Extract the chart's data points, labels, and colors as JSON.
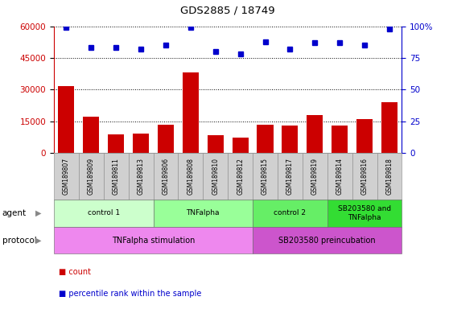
{
  "title": "GDS2885 / 18749",
  "samples": [
    "GSM189807",
    "GSM189809",
    "GSM189811",
    "GSM189813",
    "GSM189806",
    "GSM189808",
    "GSM189810",
    "GSM189812",
    "GSM189815",
    "GSM189817",
    "GSM189819",
    "GSM189814",
    "GSM189816",
    "GSM189818"
  ],
  "counts": [
    31500,
    17000,
    8800,
    9200,
    13500,
    38000,
    8500,
    7200,
    13500,
    13000,
    18000,
    13000,
    16000,
    24000
  ],
  "percentile_ranks": [
    99,
    83,
    83,
    82,
    85,
    99,
    80,
    78,
    88,
    82,
    87,
    87,
    85,
    98
  ],
  "bar_color": "#cc0000",
  "dot_color": "#0000cc",
  "ylim_left": [
    0,
    60000
  ],
  "ylim_right": [
    0,
    100
  ],
  "yticks_left": [
    0,
    15000,
    30000,
    45000,
    60000
  ],
  "ytick_labels_left": [
    "0",
    "15000",
    "30000",
    "45000",
    "60000"
  ],
  "yticks_right": [
    0,
    25,
    50,
    75,
    100
  ],
  "ytick_labels_right": [
    "0",
    "25",
    "50",
    "75",
    "100%"
  ],
  "agent_groups": [
    {
      "label": "control 1",
      "start": 0,
      "end": 4,
      "color": "#ccffcc"
    },
    {
      "label": "TNFalpha",
      "start": 4,
      "end": 8,
      "color": "#99ff99"
    },
    {
      "label": "control 2",
      "start": 8,
      "end": 11,
      "color": "#66ee66"
    },
    {
      "label": "SB203580 and\nTNFalpha",
      "start": 11,
      "end": 14,
      "color": "#33dd33"
    }
  ],
  "protocol_groups": [
    {
      "label": "TNFalpha stimulation",
      "start": 0,
      "end": 8,
      "color": "#ee88ee"
    },
    {
      "label": "SB203580 preincubation",
      "start": 8,
      "end": 14,
      "color": "#cc55cc"
    }
  ],
  "background_color": "#ffffff",
  "label_color": "#000000",
  "sample_box_color": "#d0d0d0",
  "agent_label": "agent",
  "protocol_label": "protocol",
  "legend_count_label": "count",
  "legend_perc_label": "percentile rank within the sample"
}
